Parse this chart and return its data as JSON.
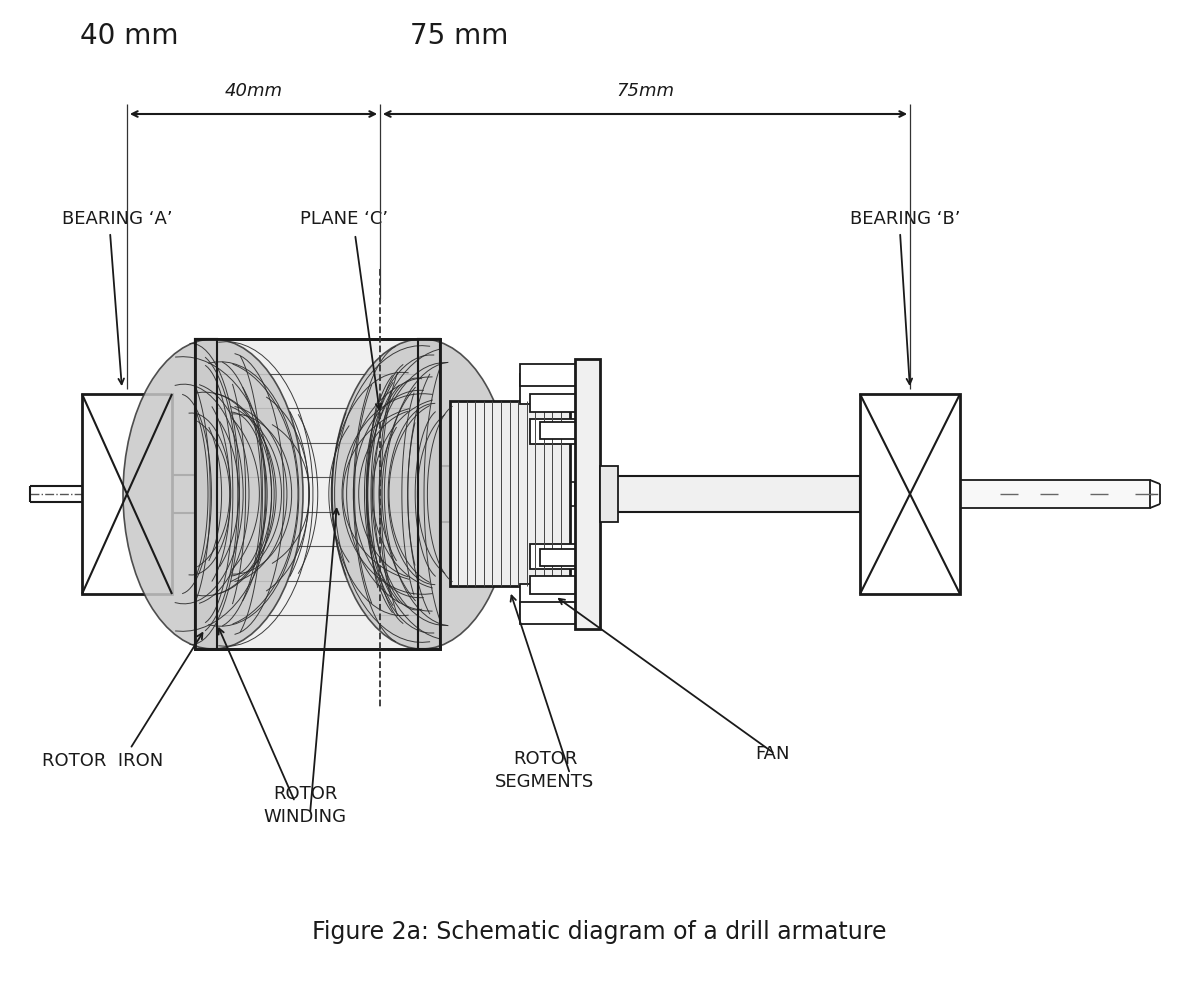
{
  "title": "Figure 2a: Schematic diagram of a drill armature",
  "top_label_40": "40 mm",
  "top_label_75": "75 mm",
  "label_40mm": "40mm",
  "label_75mm": "75mm",
  "label_bearing_a": "BEARING ‘A’",
  "label_plane_c": "PLANE ‘C’",
  "label_bearing_b": "BEARING ‘B’",
  "label_rotor_iron": "ROTOR  IRON",
  "label_rotor_winding_1": "ROTOR",
  "label_rotor_winding_2": "WINDING",
  "label_rotor_segments_1": "ROTOR",
  "label_rotor_segments_2": "SEGMENTS",
  "label_fan": "FAN",
  "bg_color": "#ffffff",
  "line_color": "#1a1a1a"
}
